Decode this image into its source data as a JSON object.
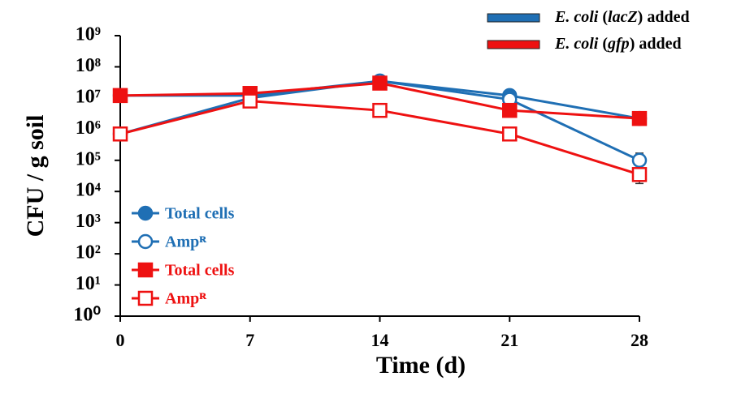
{
  "chart_data": {
    "type": "line",
    "y_label": "CFU / g soil",
    "x_label": "Time (d)",
    "x": [
      0,
      7,
      14,
      21,
      28
    ],
    "xlim": [
      0,
      28
    ],
    "xticks": [
      0,
      7,
      14,
      21,
      28
    ],
    "ylim": [
      1,
      1000000000
    ],
    "log_y": true,
    "yticks": [
      {
        "value": 1,
        "label": "10⁰"
      },
      {
        "value": 10,
        "label": "10¹"
      },
      {
        "value": 100,
        "label": "10²"
      },
      {
        "value": 1000,
        "label": "10³"
      },
      {
        "value": 10000,
        "label": "10⁴"
      },
      {
        "value": 100000,
        "label": "10⁵"
      },
      {
        "value": 1000000,
        "label": "10⁶"
      },
      {
        "value": 10000000,
        "label": "10⁷"
      },
      {
        "value": 100000000,
        "label": "10⁸"
      },
      {
        "value": 1000000000,
        "label": "10⁹"
      }
    ],
    "groups": [
      {
        "color": "#1f6fb4",
        "label_parts": [
          {
            "text": "E. coli",
            "italic": true
          },
          {
            "text": " ("
          },
          {
            "text": "lacZ",
            "italic": true
          },
          {
            "text": ") added"
          }
        ]
      },
      {
        "color": "#ee1111",
        "label_parts": [
          {
            "text": "E. coli",
            "italic": true
          },
          {
            "text": " ("
          },
          {
            "text": "gfp",
            "italic": true
          },
          {
            "text": ") added"
          }
        ]
      }
    ],
    "series": [
      {
        "name": "Total cells",
        "color": "#1f6fb4",
        "marker": "circle",
        "filled": true,
        "values": [
          12000000,
          12000000,
          35000000,
          12000000,
          2200000
        ]
      },
      {
        "name": "Ampᴿ",
        "color": "#1f6fb4",
        "marker": "circle",
        "filled": false,
        "values": [
          700000,
          10000000,
          35000000,
          9000000,
          100000
        ],
        "errors": [
          null,
          null,
          null,
          null,
          70000
        ]
      },
      {
        "name": "Total cells",
        "color": "#ee1111",
        "marker": "square",
        "filled": true,
        "values": [
          12000000,
          14000000,
          30000000,
          4000000,
          2200000
        ]
      },
      {
        "name": "Ampᴿ",
        "color": "#ee1111",
        "marker": "square",
        "filled": false,
        "values": [
          700000,
          8000000,
          4000000,
          700000,
          35000
        ],
        "errors": [
          null,
          null,
          null,
          null,
          17000
        ]
      }
    ]
  }
}
